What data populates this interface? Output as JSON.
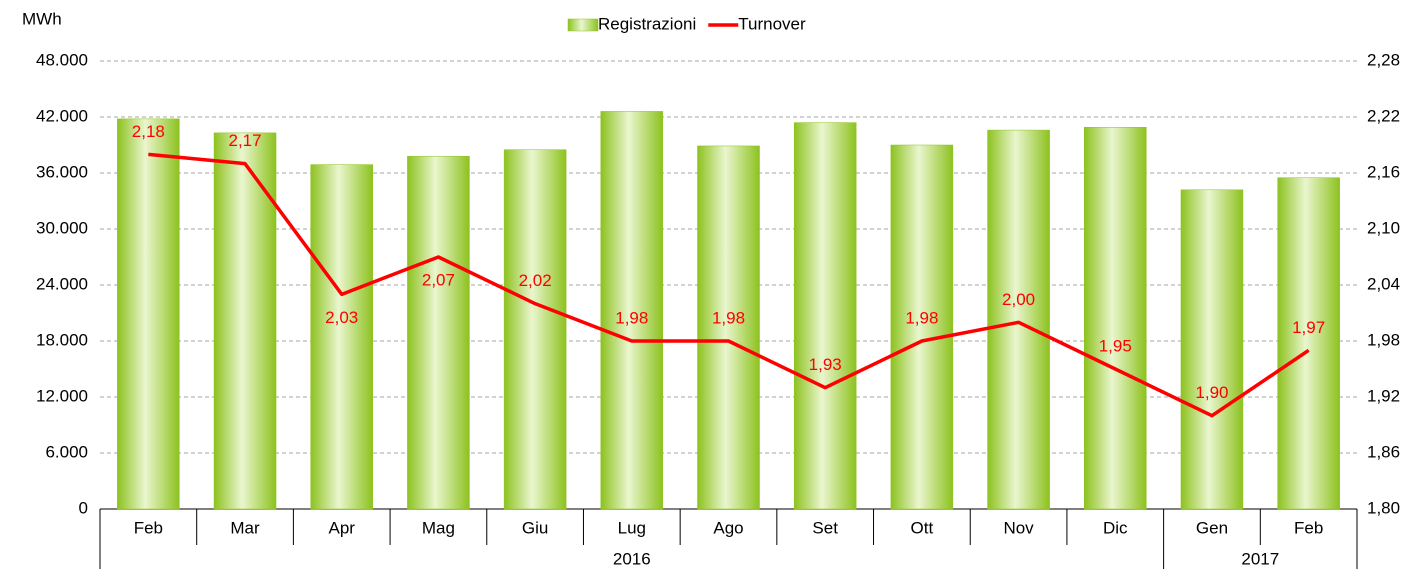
{
  "chart_data": {
    "type": "bar",
    "y_axis_label": "MWh",
    "categories": [
      "Feb",
      "Mar",
      "Apr",
      "Mag",
      "Giu",
      "Lug",
      "Ago",
      "Set",
      "Ott",
      "Nov",
      "Dic",
      "Gen",
      "Feb"
    ],
    "groups": [
      {
        "label": "2016",
        "start": 0,
        "end": 10
      },
      {
        "label": "2017",
        "start": 11,
        "end": 12
      }
    ],
    "series": [
      {
        "name": "Registrazioni",
        "type": "bar",
        "color": "#8dc21f",
        "values": [
          41800,
          40300,
          36900,
          37800,
          38500,
          42600,
          38900,
          41400,
          39000,
          40600,
          40900,
          34200,
          35500
        ]
      },
      {
        "name": "Turnover",
        "type": "line",
        "axis": "y2",
        "color": "#ff0000",
        "values": [
          2.18,
          2.17,
          2.03,
          2.07,
          2.02,
          1.98,
          1.98,
          1.93,
          1.98,
          2.0,
          1.95,
          1.9,
          1.97
        ],
        "value_labels": [
          "2,18",
          "2,17",
          "2,03",
          "2,07",
          "2,02",
          "1,98",
          "1,98",
          "1,93",
          "1,98",
          "2,00",
          "1,95",
          "1,90",
          "1,97"
        ]
      }
    ],
    "ylim": [
      0,
      48000
    ],
    "yticks": [
      0,
      {
        "value": 6000,
        "label": "6.000"
      },
      {
        "value": 12000,
        "label": "12.000"
      },
      {
        "value": 18000,
        "label": "18.000"
      },
      {
        "value": 24000,
        "label": "24.000"
      },
      {
        "value": 30000,
        "label": "30.000"
      },
      {
        "value": 36000,
        "label": "36.000"
      },
      {
        "value": 42000,
        "label": "42.000"
      },
      {
        "value": 48000,
        "label": "48.000"
      }
    ],
    "y2lim": [
      1.8,
      2.28
    ],
    "y2ticks": [
      {
        "value": 1.8,
        "label": "1,80"
      },
      {
        "value": 1.86,
        "label": "1,86"
      },
      {
        "value": 1.92,
        "label": "1,92"
      },
      {
        "value": 1.98,
        "label": "1,98"
      },
      {
        "value": 2.04,
        "label": "2,04"
      },
      {
        "value": 2.1,
        "label": "2,10"
      },
      {
        "value": 2.16,
        "label": "2,16"
      },
      {
        "value": 2.22,
        "label": "2,22"
      },
      {
        "value": 2.28,
        "label": "2,28"
      }
    ],
    "grid": true,
    "legend": "top"
  }
}
